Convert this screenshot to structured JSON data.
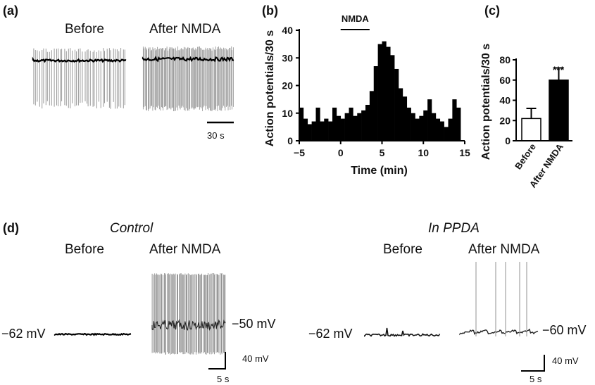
{
  "panels": {
    "a": {
      "label": "(a)",
      "before": "Before",
      "after": "After NMDA",
      "scale": "30 s"
    },
    "b": {
      "label": "(b)",
      "drug": "NMDA",
      "xlabel": "Time (min)",
      "ylabel": "Action potentials/30 s"
    },
    "c": {
      "label": "(c)",
      "ylabel": "Action potentials/30 s",
      "sig": "***"
    },
    "d": {
      "label": "(d)",
      "control": "Control",
      "ppda": "In PPDA",
      "before": "Before",
      "after": "After NMDA",
      "control_rest": "−62 mV",
      "control_after": "−50 mV",
      "ppda_rest": "−62 mV",
      "ppda_after": "−60 mV",
      "scale_v": "40 mV",
      "scale_t": "5 s"
    }
  },
  "chart_data": [
    {
      "panel": "b",
      "type": "bar",
      "xlabel": "Time (min)",
      "ylabel": "Action potentials/30 s",
      "xlim": [
        -5,
        15
      ],
      "ylim": [
        0,
        40
      ],
      "xticks": [
        -5,
        0,
        5,
        10,
        15
      ],
      "yticks": [
        0,
        10,
        20,
        30,
        40
      ],
      "annotation": "NMDA",
      "annotation_x": [
        0,
        3.5
      ],
      "bin_min": 0.5,
      "x": [
        -5,
        -4.5,
        -4,
        -3.5,
        -3,
        -2.5,
        -2,
        -1.5,
        -1,
        -0.5,
        0,
        0.5,
        1,
        1.5,
        2,
        2.5,
        3,
        3.5,
        4,
        4.5,
        5,
        5.5,
        6,
        6.5,
        7,
        7.5,
        8,
        8.5,
        9,
        9.5,
        10,
        10.5,
        11,
        11.5,
        12,
        12.5,
        13,
        13.5,
        14
      ],
      "values": [
        12,
        8,
        6,
        7,
        12,
        7,
        8,
        7,
        12,
        9,
        8,
        10,
        12,
        9,
        10,
        11,
        13,
        18,
        27,
        35,
        36,
        34,
        31,
        26,
        19,
        16,
        12,
        10,
        8,
        9,
        11,
        15,
        10,
        8,
        7,
        5,
        8,
        15,
        12
      ]
    },
    {
      "panel": "c",
      "type": "bar",
      "categories": [
        "Before",
        "After NMDA"
      ],
      "values": [
        22,
        60
      ],
      "errors": [
        10,
        12
      ],
      "ylim": [
        0,
        80
      ],
      "yticks": [
        0,
        20,
        40,
        60,
        80
      ],
      "ylabel": "Action potentials/30 s",
      "annotation": "***"
    }
  ]
}
